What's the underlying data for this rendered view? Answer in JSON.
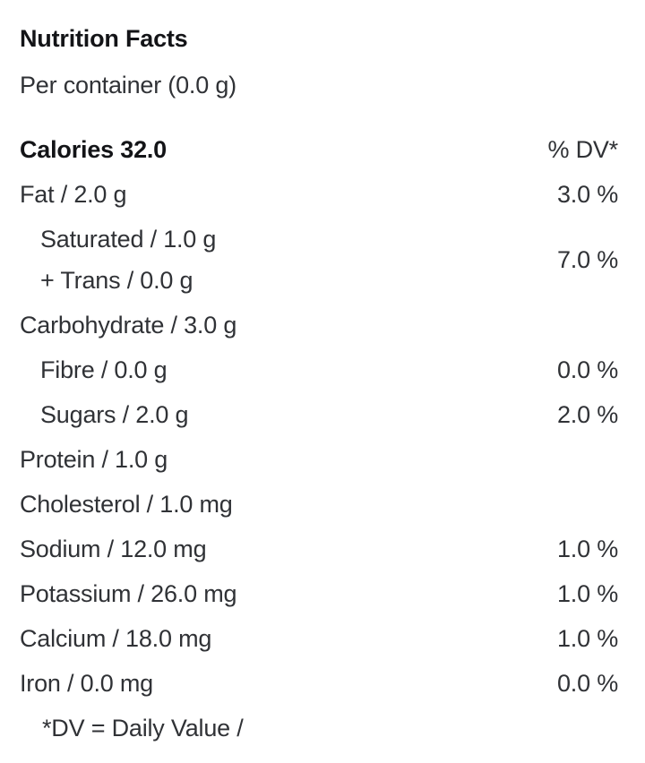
{
  "label": {
    "title": "Nutrition Facts",
    "serving": "Per container (0.0 g)",
    "calories": "Calories 32.0",
    "dv_header": "% DV*",
    "rows": [
      {
        "name": "Fat / 2.0 g",
        "dv": "3.0 %",
        "indent": false
      },
      {
        "line1": "Saturated / 1.0 g",
        "line2": "+ Trans / 0.0 g",
        "dv": "7.0 %",
        "indent": true,
        "group": true
      },
      {
        "name": "Carbohydrate / 3.0 g",
        "dv": "",
        "indent": false
      },
      {
        "name": "Fibre / 0.0 g",
        "dv": "0.0 %",
        "indent": true
      },
      {
        "name": "Sugars / 2.0 g",
        "dv": "2.0 %",
        "indent": true
      },
      {
        "name": "Protein / 1.0 g",
        "dv": "",
        "indent": false
      },
      {
        "name": "Cholesterol / 1.0 mg",
        "dv": "",
        "indent": false
      },
      {
        "name": "Sodium / 12.0 mg",
        "dv": "1.0 %",
        "indent": false
      },
      {
        "name": "Potassium / 26.0 mg",
        "dv": "1.0 %",
        "indent": false
      },
      {
        "name": "Calcium / 18.0 mg",
        "dv": "1.0 %",
        "indent": false
      },
      {
        "name": "Iron / 0.0 mg",
        "dv": "0.0 %",
        "indent": false
      }
    ],
    "footnote": "*DV = Daily Value /",
    "colors": {
      "background": "#ffffff",
      "text": "#303236",
      "heading": "#131417"
    }
  }
}
